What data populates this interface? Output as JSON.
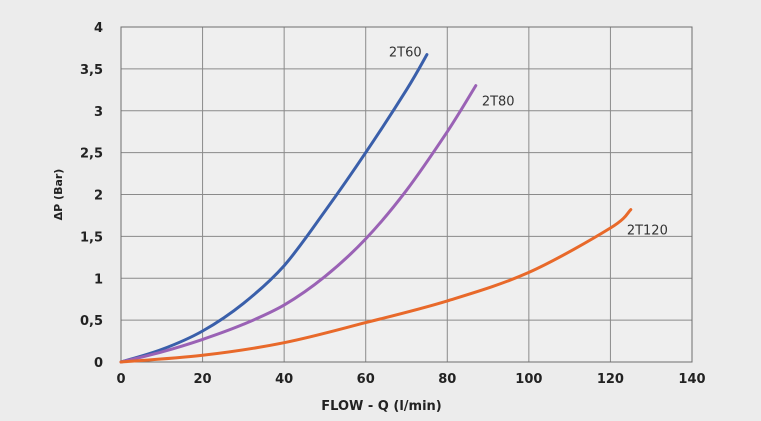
{
  "chart_data": {
    "type": "line",
    "title": "",
    "xlabel": "FLOW - Q (l/min)",
    "ylabel": "ΔP (Bar)",
    "xlim": [
      0,
      140
    ],
    "ylim": [
      0,
      4
    ],
    "grid": true,
    "x_ticks": [
      {
        "value": 0,
        "label": "0"
      },
      {
        "value": 20,
        "label": "20"
      },
      {
        "value": 40,
        "label": "40"
      },
      {
        "value": 60,
        "label": "60"
      },
      {
        "value": 80,
        "label": "80"
      },
      {
        "value": 100,
        "label": "100"
      },
      {
        "value": 120,
        "label": "120"
      },
      {
        "value": 140,
        "label": "140"
      }
    ],
    "y_ticks": [
      {
        "value": 0,
        "label": "0"
      },
      {
        "value": 0.5,
        "label": "0,5"
      },
      {
        "value": 1,
        "label": "1"
      },
      {
        "value": 1.5,
        "label": "1,5"
      },
      {
        "value": 2,
        "label": "2"
      },
      {
        "value": 2.5,
        "label": "2,5"
      },
      {
        "value": 3,
        "label": "3"
      },
      {
        "value": 3.5,
        "label": "3,5"
      },
      {
        "value": 4,
        "label": "4"
      }
    ],
    "series": [
      {
        "name": "2T60",
        "color": "#3a5faa",
        "x": [
          0,
          10,
          20,
          30,
          40,
          50,
          60,
          70,
          75
        ],
        "y": [
          0,
          0.15,
          0.37,
          0.7,
          1.15,
          1.8,
          2.5,
          3.25,
          3.67
        ]
      },
      {
        "name": "2T80",
        "color": "#9a62b5",
        "x": [
          0,
          10,
          20,
          30,
          40,
          50,
          60,
          70,
          80,
          87
        ],
        "y": [
          0,
          0.12,
          0.27,
          0.45,
          0.68,
          1.02,
          1.47,
          2.05,
          2.75,
          3.3
        ]
      },
      {
        "name": "2T120",
        "color": "#e8692a",
        "x": [
          0,
          20,
          40,
          60,
          80,
          100,
          120,
          125
        ],
        "y": [
          0,
          0.08,
          0.23,
          0.47,
          0.73,
          1.07,
          1.6,
          1.82
        ]
      }
    ]
  }
}
